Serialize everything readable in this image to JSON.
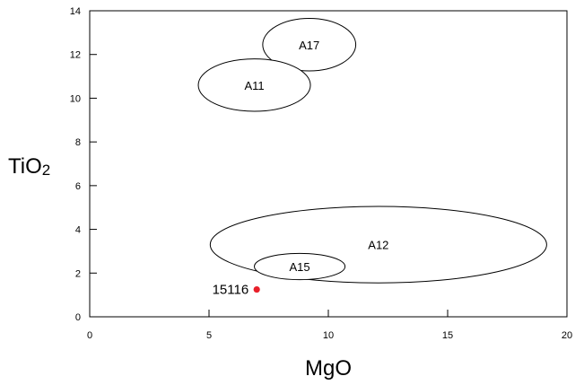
{
  "chart_data": {
    "type": "scatter",
    "title": "",
    "xlabel": "MgO",
    "ylabel": "TiO2",
    "ylabel_parts": {
      "base": "TiO",
      "sub": "2"
    },
    "xlim": [
      0,
      20
    ],
    "ylim": [
      0,
      14
    ],
    "x_ticks": [
      0,
      5,
      10,
      15,
      20
    ],
    "y_ticks": [
      0,
      2,
      4,
      6,
      8,
      10,
      12,
      14
    ],
    "grid": false,
    "regions": [
      {
        "name": "A17",
        "cx": 9.2,
        "cy": 12.45,
        "rx": 1.95,
        "ry": 1.2
      },
      {
        "name": "A11",
        "cx": 6.9,
        "cy": 10.6,
        "rx": 2.35,
        "ry": 1.2
      },
      {
        "name": "A12",
        "cx": 12.1,
        "cy": 3.3,
        "rx": 7.05,
        "ry": 1.75
      },
      {
        "name": "A15",
        "cx": 8.8,
        "cy": 2.3,
        "rx": 1.9,
        "ry": 0.6
      }
    ],
    "points": [
      {
        "name": "15116",
        "x": 7.0,
        "y": 1.25,
        "color": "#e8202a"
      }
    ]
  }
}
